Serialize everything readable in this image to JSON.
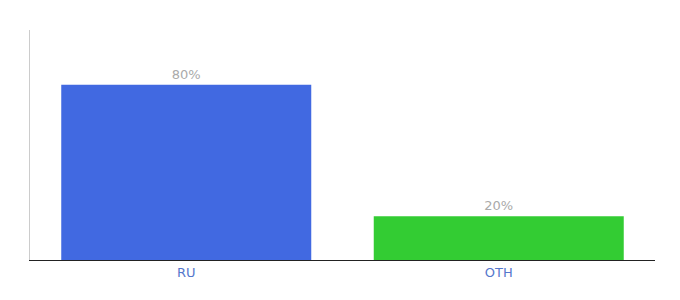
{
  "chart_data": {
    "type": "bar",
    "categories": [
      "RU",
      "OTH"
    ],
    "values": [
      80,
      20
    ],
    "value_labels": [
      "80%",
      "20%"
    ],
    "colors": [
      "#4169e1",
      "#33cc33"
    ],
    "ylim": [
      0,
      105
    ],
    "data_labels": true,
    "tick_labels": "x",
    "grid": false
  }
}
